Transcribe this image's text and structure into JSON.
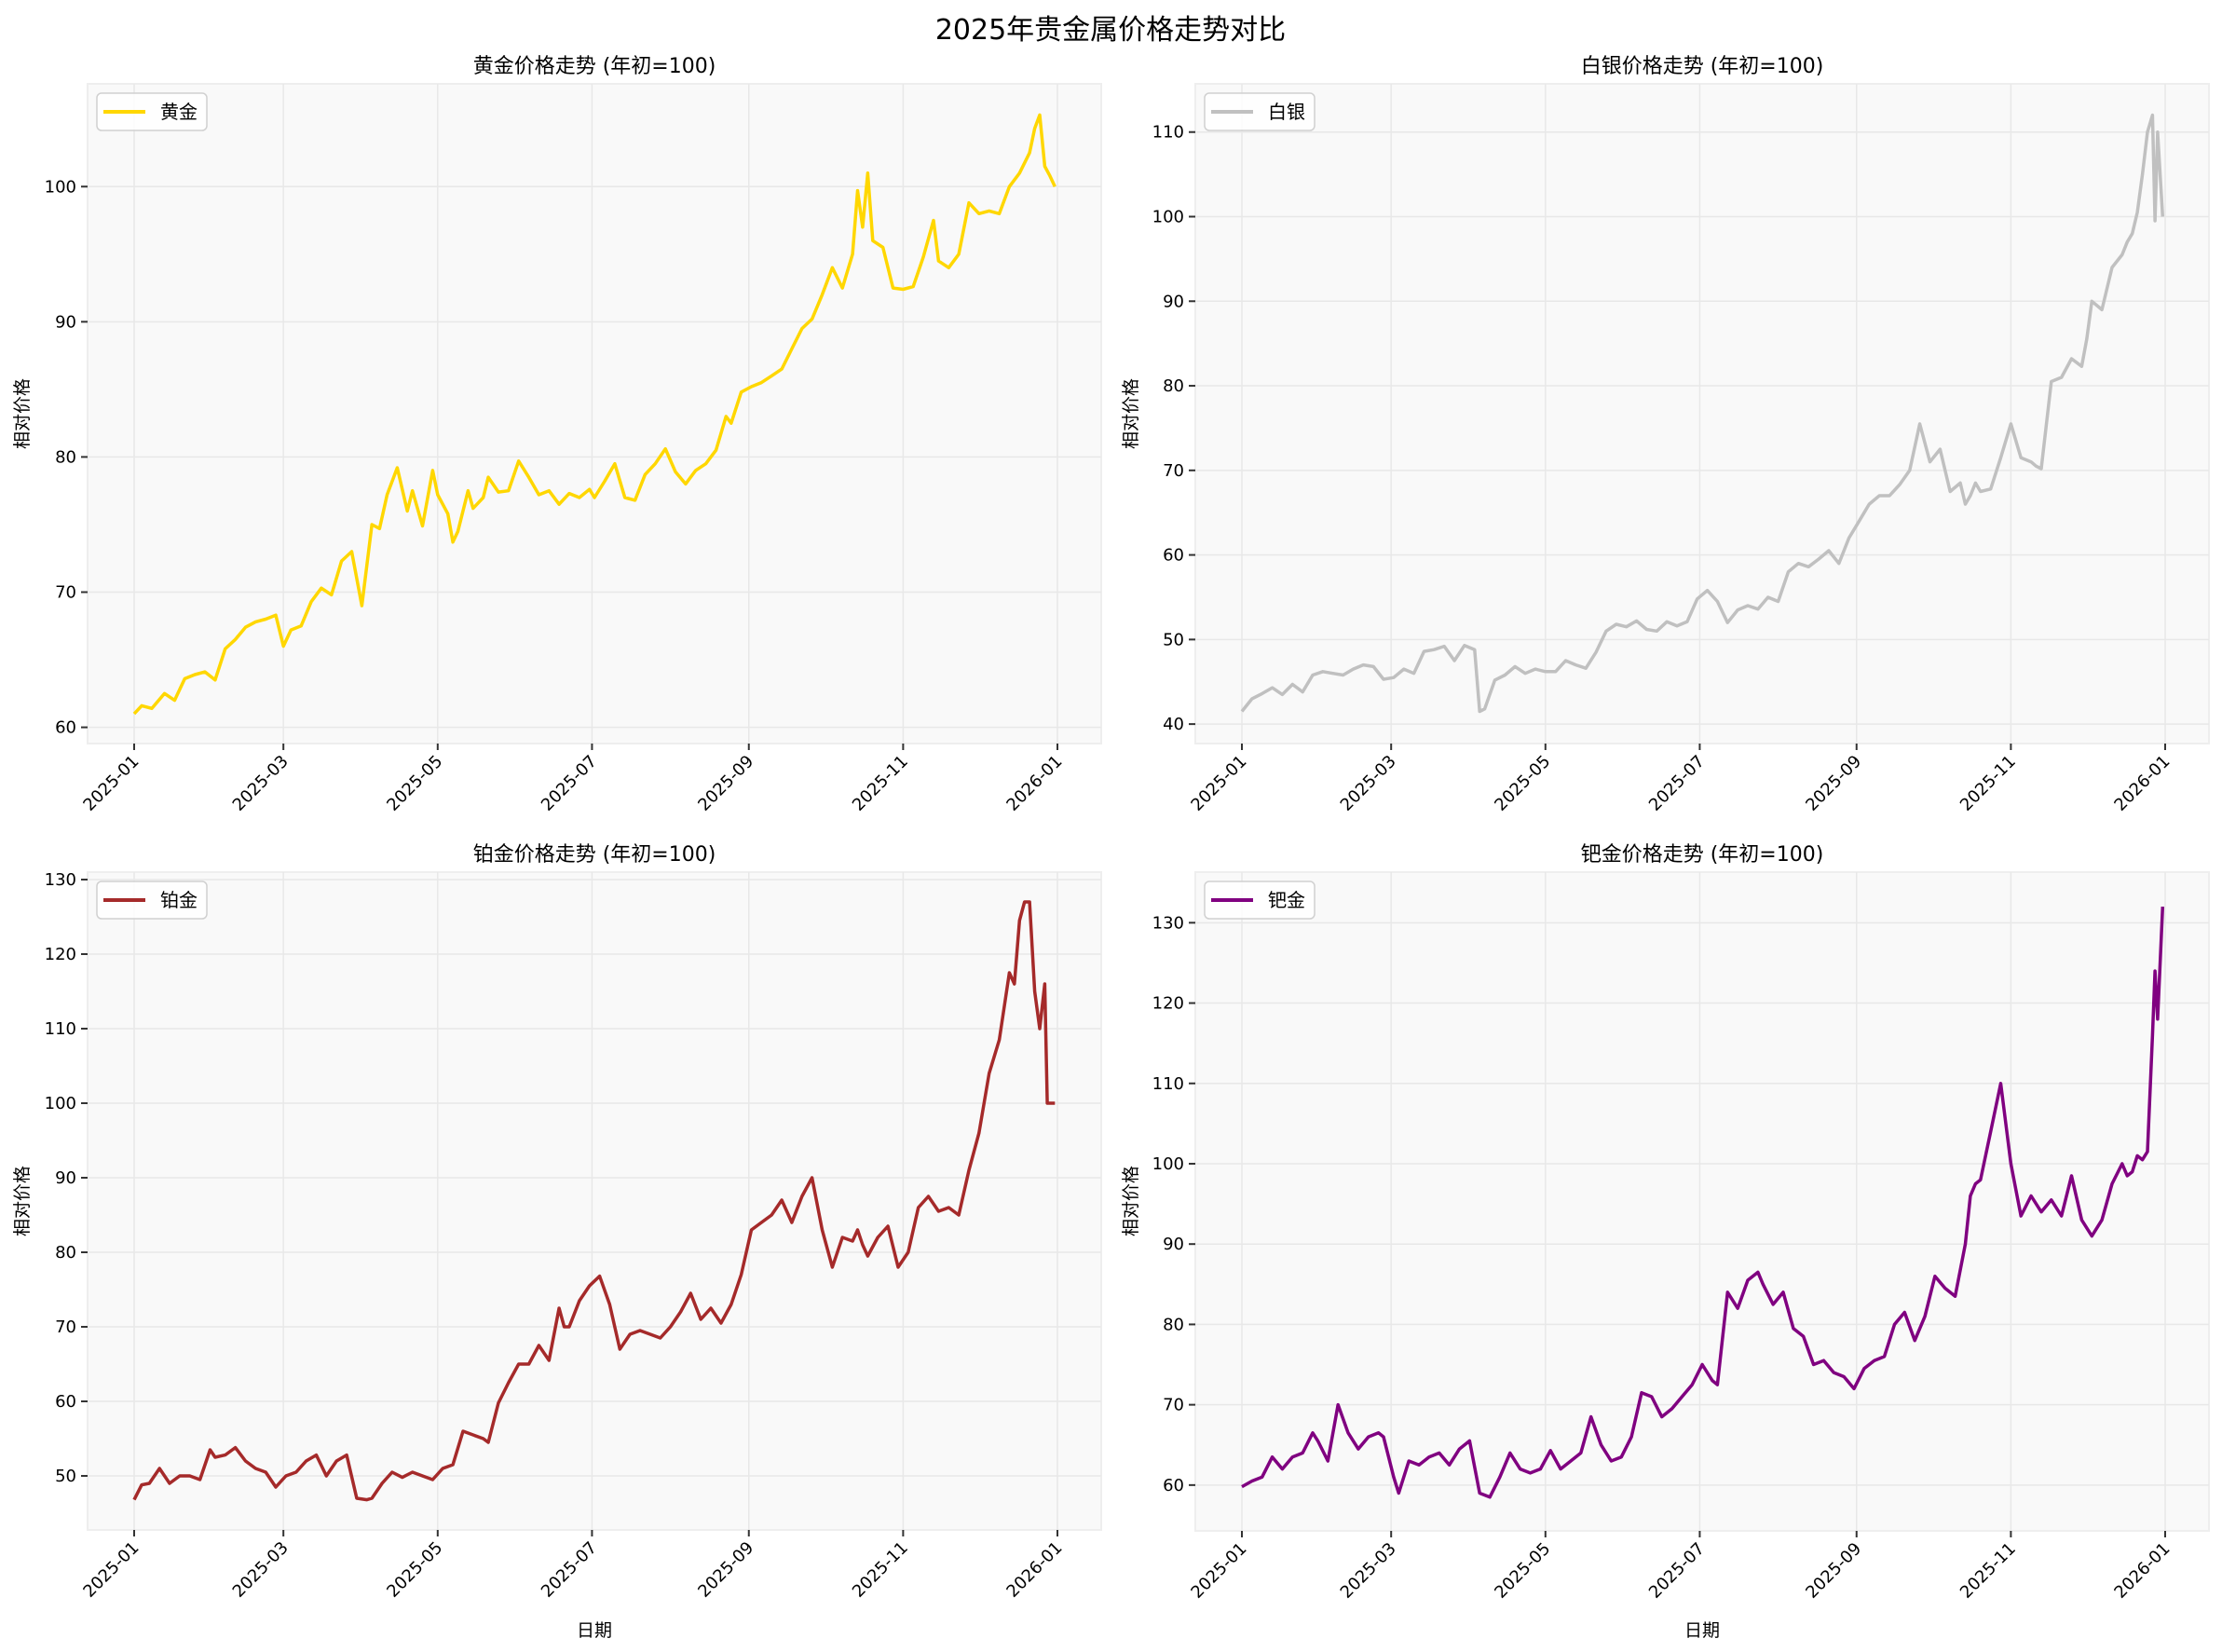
{
  "figure": {
    "suptitle": "2025年贵金属价格走势对比",
    "background": "#ffffff",
    "axes_background": "#f9f9f9",
    "grid_color": "#e8e8e8"
  },
  "chart_data": [
    {
      "type": "line",
      "title": "黄金价格走势 (年初=100)",
      "xlabel": "",
      "ylabel": "相对价格",
      "legend": [
        "黄金"
      ],
      "legend_position": "upper left",
      "grid": true,
      "color": "#FFD700",
      "ylim": [
        58.8,
        107.6
      ],
      "yticks": [
        60,
        70,
        80,
        90,
        100
      ],
      "xtick_labels": [
        "2025-01",
        "2025-03",
        "2025-05",
        "2025-07",
        "2025-09",
        "2025-11",
        "2026-01"
      ],
      "x_unit": "day_of_2025",
      "series": [
        {
          "name": "黄金",
          "x": [
            0,
            3,
            7,
            12,
            16,
            20,
            24,
            28,
            32,
            36,
            40,
            44,
            48,
            52,
            56,
            59,
            62,
            66,
            70,
            74,
            78,
            82,
            86,
            90,
            94,
            97,
            100,
            104,
            108,
            110,
            114,
            118,
            120,
            124,
            126,
            128,
            132,
            134,
            138,
            140,
            144,
            148,
            152,
            156,
            160,
            164,
            168,
            172,
            176,
            180,
            182,
            186,
            190,
            194,
            198,
            202,
            206,
            210,
            214,
            218,
            222,
            226,
            230,
            234,
            236,
            240,
            244,
            248,
            252,
            256,
            260,
            264,
            268,
            272,
            276,
            280,
            284,
            286,
            288,
            290,
            292,
            296,
            300,
            304,
            308,
            312,
            316,
            318,
            322,
            326,
            330,
            334,
            338,
            342,
            346,
            350,
            354,
            356,
            358,
            360,
            362,
            364
          ],
          "values": [
            61.0,
            61.6,
            61.4,
            62.5,
            62.0,
            63.6,
            63.9,
            64.1,
            63.5,
            65.8,
            66.5,
            67.4,
            67.8,
            68.0,
            68.3,
            66.0,
            67.2,
            67.5,
            69.3,
            70.3,
            69.8,
            72.3,
            73.0,
            69.0,
            75.0,
            74.7,
            77.2,
            79.2,
            76.0,
            77.5,
            74.9,
            79.0,
            77.2,
            75.8,
            73.7,
            74.5,
            77.5,
            76.2,
            77.0,
            78.5,
            77.4,
            77.5,
            79.7,
            78.5,
            77.2,
            77.5,
            76.5,
            77.3,
            77.0,
            77.6,
            77.0,
            78.2,
            79.5,
            77.0,
            76.8,
            78.7,
            79.5,
            80.6,
            78.9,
            78.0,
            79.0,
            79.5,
            80.5,
            83.0,
            82.5,
            84.8,
            85.2,
            85.5,
            86.0,
            86.5,
            88.0,
            89.5,
            90.2,
            92.0,
            94.0,
            92.5,
            95.0,
            99.7,
            97.0,
            101.0,
            96.0,
            95.5,
            92.5,
            92.4,
            92.6,
            94.8,
            97.5,
            94.5,
            94.0,
            95.0,
            98.8,
            98.0,
            98.2,
            98.0,
            100.0,
            101.0,
            102.5,
            104.3,
            105.3,
            101.5,
            100.8,
            100.0
          ]
        }
      ]
    },
    {
      "type": "line",
      "title": "白银价格走势 (年初=100)",
      "xlabel": "",
      "ylabel": "相对价格",
      "legend": [
        "白银"
      ],
      "legend_position": "upper left",
      "grid": true,
      "color": "#C0C0C0",
      "ylim": [
        37.7,
        115.7
      ],
      "yticks": [
        40,
        50,
        60,
        70,
        80,
        90,
        100,
        110
      ],
      "xtick_labels": [
        "2025-01",
        "2025-03",
        "2025-05",
        "2025-07",
        "2025-09",
        "2025-11",
        "2026-01"
      ],
      "x_unit": "day_of_2025",
      "series": [
        {
          "name": "白银",
          "x": [
            0,
            4,
            8,
            12,
            16,
            20,
            24,
            28,
            32,
            36,
            40,
            44,
            48,
            52,
            56,
            60,
            64,
            68,
            72,
            76,
            80,
            84,
            88,
            92,
            94,
            96,
            100,
            104,
            108,
            112,
            116,
            120,
            124,
            128,
            132,
            136,
            140,
            144,
            148,
            152,
            156,
            160,
            164,
            168,
            172,
            176,
            180,
            184,
            188,
            192,
            196,
            200,
            204,
            208,
            212,
            216,
            220,
            224,
            228,
            232,
            236,
            240,
            244,
            248,
            252,
            256,
            260,
            264,
            268,
            272,
            276,
            280,
            284,
            286,
            288,
            290,
            292,
            296,
            300,
            304,
            308,
            312,
            314,
            316,
            320,
            324,
            328,
            332,
            334,
            336,
            340,
            344,
            348,
            350,
            352,
            354,
            356,
            358,
            360,
            361,
            362,
            364
          ],
          "values": [
            41.5,
            43.0,
            43.6,
            44.3,
            43.5,
            44.7,
            43.8,
            45.8,
            46.2,
            46.0,
            45.8,
            46.5,
            47.0,
            46.8,
            45.3,
            45.5,
            46.5,
            46.0,
            48.6,
            48.8,
            49.2,
            47.5,
            49.3,
            48.8,
            41.5,
            41.8,
            45.2,
            45.8,
            46.8,
            46.0,
            46.5,
            46.2,
            46.2,
            47.5,
            47.0,
            46.6,
            48.5,
            51.0,
            51.8,
            51.5,
            52.2,
            51.2,
            51.0,
            52.1,
            51.6,
            52.1,
            54.8,
            55.8,
            54.5,
            52.0,
            53.5,
            54.0,
            53.6,
            55.0,
            54.5,
            58.0,
            59.0,
            58.6,
            59.5,
            60.5,
            59.0,
            62.0,
            64.0,
            66.0,
            67.0,
            67.0,
            68.3,
            70.0,
            75.5,
            71.0,
            72.5,
            67.5,
            68.5,
            66.0,
            67.0,
            68.5,
            67.5,
            67.8,
            71.5,
            75.5,
            71.5,
            71.0,
            70.5,
            70.2,
            80.5,
            81.0,
            83.2,
            82.3,
            85.5,
            90.0,
            89.0,
            94.0,
            95.5,
            97.0,
            98.0,
            100.5,
            105.0,
            110.0,
            112.0,
            99.5,
            110.0,
            100.0
          ]
        }
      ]
    },
    {
      "type": "line",
      "title": "铂金价格走势 (年初=100)",
      "xlabel": "日期",
      "ylabel": "相对价格",
      "legend": [
        "铂金"
      ],
      "legend_position": "upper left",
      "grid": true,
      "color": "#A52A2A",
      "ylim": [
        42.75,
        131.0
      ],
      "yticks": [
        50,
        60,
        70,
        80,
        90,
        100,
        110,
        120,
        130
      ],
      "xtick_labels": [
        "2025-01",
        "2025-03",
        "2025-05",
        "2025-07",
        "2025-09",
        "2025-11",
        "2026-01"
      ],
      "x_unit": "day_of_2025",
      "series": [
        {
          "name": "铂金",
          "x": [
            0,
            3,
            6,
            10,
            14,
            18,
            22,
            26,
            30,
            32,
            36,
            40,
            44,
            48,
            52,
            56,
            60,
            64,
            68,
            72,
            76,
            80,
            84,
            88,
            92,
            94,
            98,
            102,
            106,
            110,
            114,
            118,
            122,
            126,
            130,
            134,
            138,
            140,
            144,
            148,
            152,
            156,
            160,
            164,
            168,
            170,
            172,
            176,
            180,
            184,
            188,
            192,
            196,
            200,
            204,
            208,
            212,
            216,
            220,
            224,
            228,
            232,
            236,
            240,
            244,
            248,
            252,
            256,
            260,
            264,
            268,
            272,
            276,
            280,
            284,
            286,
            288,
            290,
            294,
            298,
            302,
            306,
            310,
            314,
            318,
            322,
            326,
            330,
            334,
            338,
            342,
            346,
            348,
            350,
            352,
            354,
            356,
            358,
            360,
            361,
            362,
            364
          ],
          "values": [
            46.8,
            48.8,
            49.0,
            51.0,
            49.0,
            50.0,
            50.0,
            49.5,
            53.5,
            52.5,
            52.8,
            53.8,
            52.0,
            51.0,
            50.5,
            48.5,
            50.0,
            50.5,
            52.0,
            52.8,
            50.0,
            52.0,
            52.8,
            47.0,
            46.8,
            47.0,
            49.0,
            50.5,
            49.8,
            50.5,
            50.0,
            49.5,
            51.0,
            51.5,
            56.0,
            55.5,
            55.0,
            54.5,
            59.8,
            62.5,
            65.0,
            65.0,
            67.5,
            65.5,
            72.5,
            70.0,
            70.0,
            73.5,
            75.5,
            76.8,
            73.0,
            67.0,
            69.0,
            69.5,
            69.0,
            68.5,
            70.0,
            72.0,
            74.5,
            71.0,
            72.5,
            70.5,
            73.0,
            77.0,
            83.0,
            84.0,
            85.0,
            87.0,
            84.0,
            87.5,
            90.0,
            83.0,
            78.0,
            82.0,
            81.5,
            83.0,
            81.0,
            79.5,
            82.0,
            83.5,
            78.0,
            80.0,
            86.0,
            87.5,
            85.5,
            86.0,
            85.0,
            91.0,
            96.0,
            104.0,
            108.5,
            117.5,
            116.0,
            124.5,
            127.0,
            127.0,
            115.0,
            110.0,
            116.0,
            100.0,
            100.0,
            100.0
          ]
        }
      ]
    },
    {
      "type": "line",
      "title": "钯金价格走势 (年初=100)",
      "xlabel": "日期",
      "ylabel": "相对价格",
      "legend": [
        "钯金"
      ],
      "legend_position": "upper left",
      "grid": true,
      "color": "#800080",
      "ylim": [
        54.3,
        136.3
      ],
      "yticks": [
        60,
        70,
        80,
        90,
        100,
        110,
        120,
        130
      ],
      "xtick_labels": [
        "2025-01",
        "2025-03",
        "2025-05",
        "2025-07",
        "2025-09",
        "2025-11",
        "2026-01"
      ],
      "x_unit": "day_of_2025",
      "series": [
        {
          "name": "钯金",
          "x": [
            0,
            4,
            8,
            12,
            16,
            20,
            24,
            28,
            30,
            34,
            38,
            42,
            46,
            50,
            54,
            56,
            60,
            62,
            66,
            70,
            74,
            78,
            82,
            86,
            90,
            94,
            98,
            102,
            106,
            110,
            114,
            118,
            122,
            126,
            130,
            134,
            138,
            142,
            146,
            150,
            154,
            158,
            162,
            166,
            170,
            174,
            178,
            182,
            186,
            188,
            192,
            196,
            200,
            204,
            206,
            210,
            214,
            218,
            222,
            226,
            230,
            234,
            238,
            242,
            246,
            250,
            254,
            258,
            262,
            266,
            270,
            274,
            278,
            282,
            286,
            288,
            290,
            292,
            296,
            300,
            304,
            308,
            312,
            316,
            320,
            324,
            328,
            332,
            336,
            340,
            344,
            348,
            350,
            352,
            354,
            356,
            358,
            360,
            361,
            362,
            364
          ],
          "values": [
            59.8,
            60.5,
            61.0,
            63.5,
            62.0,
            63.5,
            64.0,
            66.5,
            65.5,
            63.0,
            70.0,
            66.5,
            64.5,
            66.0,
            66.5,
            66.0,
            61.0,
            59.0,
            63.0,
            62.5,
            63.5,
            64.0,
            62.5,
            64.5,
            65.5,
            59.0,
            58.5,
            61.0,
            64.0,
            62.0,
            61.5,
            62.0,
            64.3,
            62.0,
            63.0,
            64.0,
            68.5,
            65.0,
            63.0,
            63.5,
            66.0,
            71.5,
            71.0,
            68.5,
            69.5,
            71.0,
            72.5,
            75.0,
            73.0,
            72.5,
            84.0,
            82.0,
            85.5,
            86.5,
            85.0,
            82.5,
            84.0,
            79.5,
            78.5,
            75.0,
            75.5,
            74.0,
            73.5,
            72.0,
            74.5,
            75.5,
            76.0,
            80.0,
            81.5,
            78.0,
            81.0,
            86.0,
            84.5,
            83.5,
            90.0,
            96.0,
            97.5,
            98.0,
            104.0,
            110.0,
            100.0,
            93.5,
            96.0,
            94.0,
            95.5,
            93.5,
            98.5,
            93.0,
            91.0,
            93.0,
            97.5,
            100.0,
            98.5,
            99.0,
            101.0,
            100.5,
            101.5,
            116.0,
            124.0,
            118.0,
            132.0
          ]
        }
      ]
    }
  ]
}
